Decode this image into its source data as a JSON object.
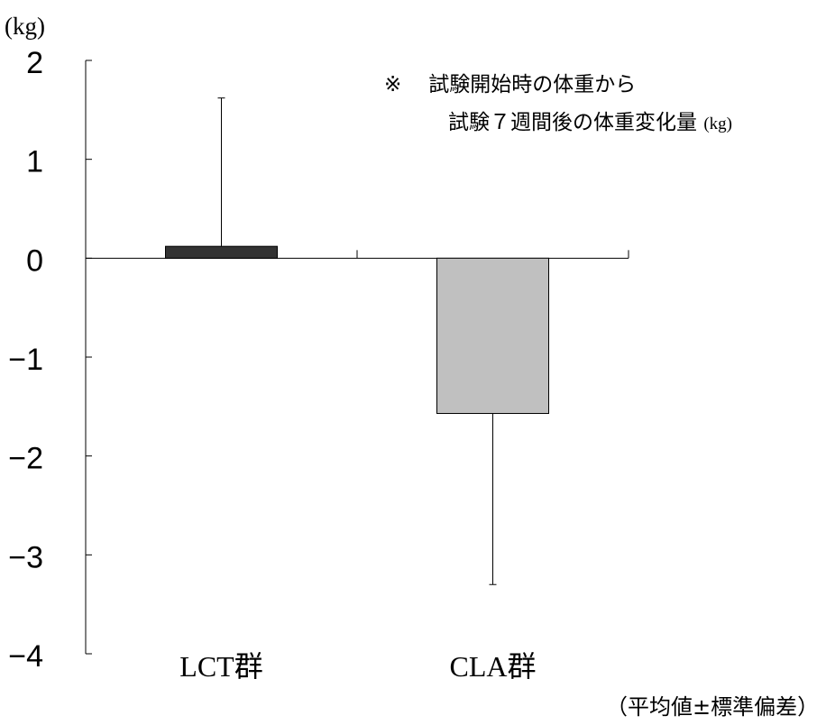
{
  "chart_data": {
    "type": "bar",
    "y_unit_label": "(kg)",
    "categories": [
      "LCT群",
      "CLA群"
    ],
    "values": [
      0.12,
      -1.57
    ],
    "error_plus": [
      1.5,
      0
    ],
    "error_minus": [
      0,
      1.73
    ],
    "bar_colors": [
      "#333333",
      "#c0c0c0"
    ],
    "ylim": [
      -4,
      2
    ],
    "yticks": [
      2,
      1,
      0,
      -1,
      -2,
      -3,
      -4
    ],
    "ytick_labels": [
      "2",
      "1",
      "0",
      "−1",
      "−2",
      "−3",
      "−4"
    ],
    "grid": false,
    "legend": "none"
  },
  "annotation": {
    "mark": "※",
    "line1": "試験開始時の体重から",
    "line2": "試験７週間後の体重変化量",
    "line2_unit": "(kg)"
  },
  "footnote": "（平均値±標準偏差）"
}
